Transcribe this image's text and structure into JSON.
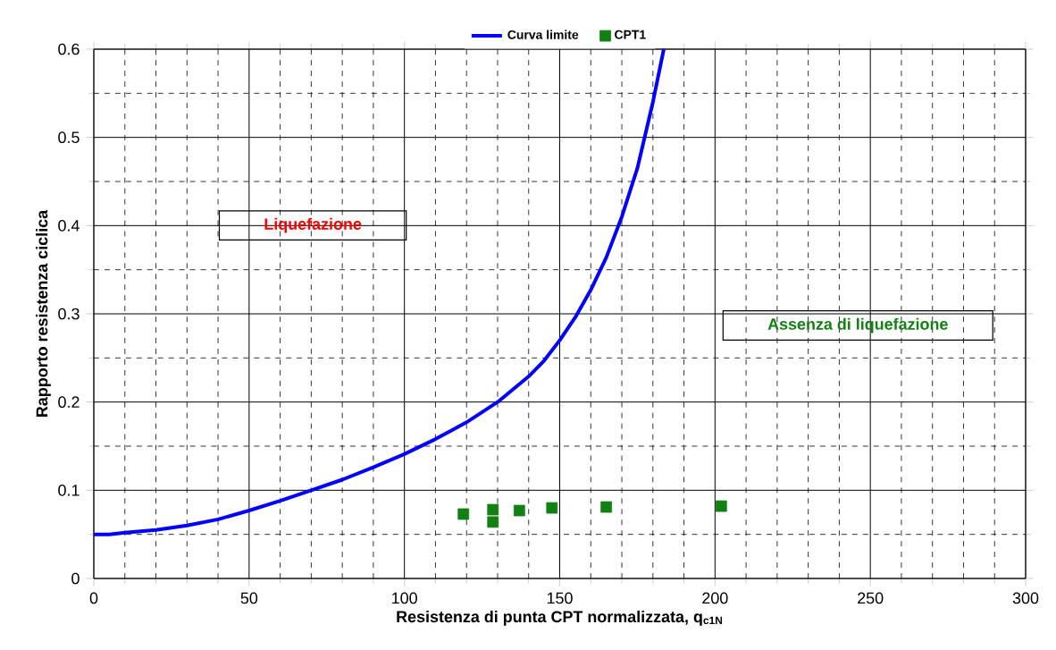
{
  "chart_data": {
    "type": "line",
    "xlabel": "Resistenza di punta CPT normalizzata, q$_{c1N}$",
    "ylabel": "Rapporto resistenza ciclica",
    "series": [
      {
        "name": "Curva limite",
        "color": "#0000ff",
        "marker": "none",
        "line_style": "solid",
        "x": [
          0,
          5,
          10,
          20,
          30,
          40,
          50,
          60,
          70,
          80,
          90,
          100,
          110,
          120,
          130,
          140,
          145,
          150,
          155,
          160,
          165,
          170,
          175,
          180,
          183.5
        ],
        "values": [
          0.05,
          0.05,
          0.052,
          0.055,
          0.06,
          0.067,
          0.077,
          0.088,
          0.1,
          0.112,
          0.126,
          0.141,
          0.158,
          0.177,
          0.2,
          0.229,
          0.247,
          0.27,
          0.296,
          0.327,
          0.364,
          0.41,
          0.465,
          0.54,
          0.6
        ]
      },
      {
        "name": "CPT1",
        "type": "scatter",
        "color": "#138013",
        "marker": "square",
        "x": [
          119,
          128.5,
          128.5,
          137,
          147.5,
          165,
          202
        ],
        "values": [
          0.073,
          0.078,
          0.064,
          0.077,
          0.08,
          0.081,
          0.082
        ]
      }
    ],
    "annotations": [
      "Liquefazione",
      "Assenza di liquefazione"
    ],
    "xlim": [
      0,
      300
    ],
    "xticks": [
      0,
      50,
      100,
      150,
      200,
      250,
      300
    ],
    "ylim": [
      0,
      0.6
    ],
    "yticks": [
      0,
      0.1,
      0.2,
      0.3,
      0.4,
      0.5,
      0.6
    ],
    "grid": true,
    "legend": "top"
  }
}
